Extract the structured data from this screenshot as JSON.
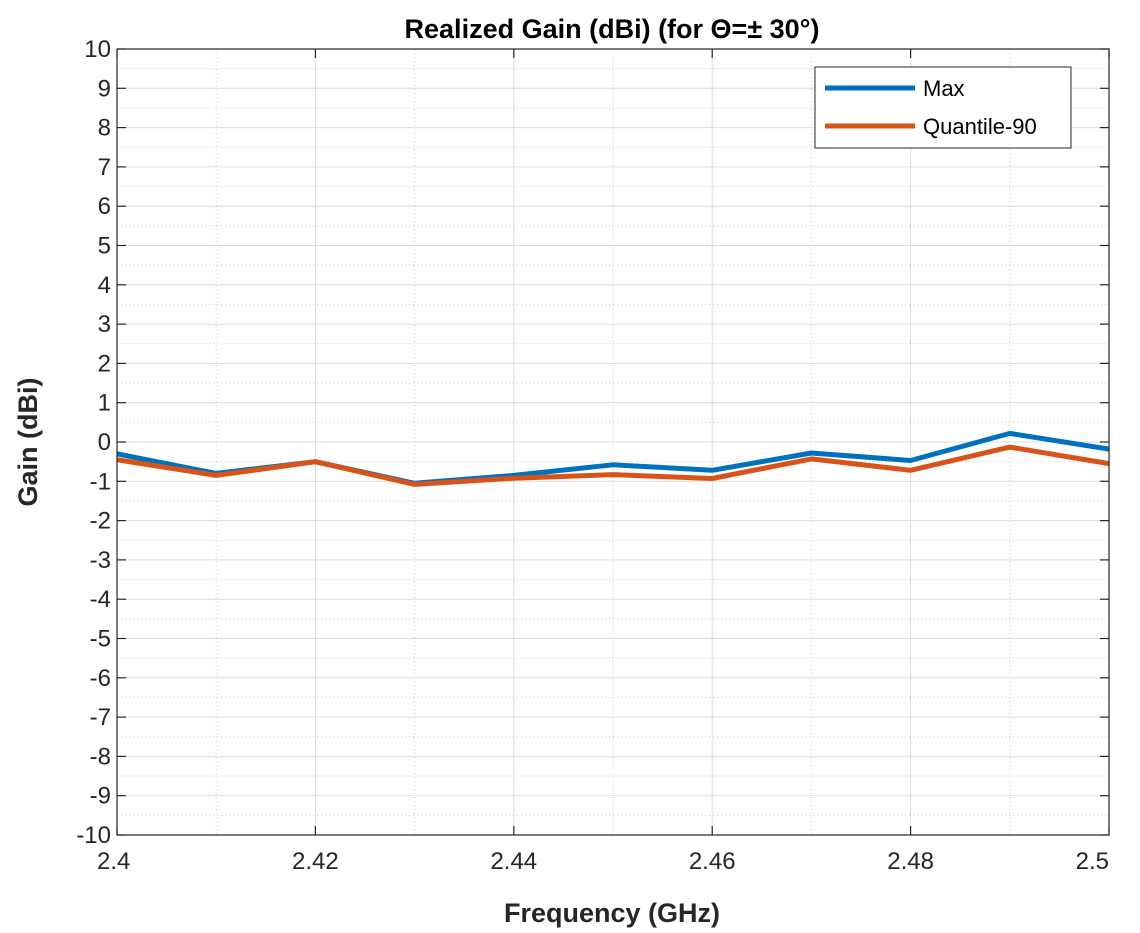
{
  "colors": {
    "max": "#0072BD",
    "quantile": "#D95319",
    "axis": "#262626",
    "grid_major": "#dcdcdc",
    "grid_minor": "#c8c8c8"
  },
  "chart_data": {
    "type": "line",
    "title": "Realized Gain (dBi) (for Θ=± 30°)",
    "xlabel": "Frequency (GHz)",
    "ylabel": "Gain (dBi)",
    "xlim": [
      2.4,
      2.5
    ],
    "ylim": [
      -10,
      10
    ],
    "x": [
      2.4,
      2.41,
      2.42,
      2.43,
      2.44,
      2.45,
      2.46,
      2.47,
      2.48,
      2.49,
      2.5
    ],
    "xticks": [
      2.4,
      2.42,
      2.44,
      2.46,
      2.48,
      2.5
    ],
    "xtick_labels": [
      "2.4",
      "2.42",
      "2.44",
      "2.46",
      "2.48",
      "2.5"
    ],
    "yticks": [
      10,
      9,
      8,
      7,
      6,
      5,
      4,
      3,
      2,
      1,
      0,
      -1,
      -2,
      -3,
      -4,
      -5,
      -6,
      -7,
      -8,
      -9,
      -10
    ],
    "ytick_labels": [
      "10",
      "9",
      "8",
      "7",
      "6",
      "5",
      "4",
      "3",
      "2",
      "1",
      "0",
      "-1",
      "-2",
      "-3",
      "-4",
      "-5",
      "-6",
      "-7",
      "-8",
      "-9",
      "-10"
    ],
    "grid": true,
    "minor_grid": true,
    "legend_position": "top-right",
    "series": [
      {
        "name": "Max",
        "color": "#0072BD",
        "values": [
          -0.3,
          -0.8,
          -0.5,
          -1.05,
          -0.85,
          -0.58,
          -0.72,
          -0.28,
          -0.47,
          0.22,
          -0.18
        ]
      },
      {
        "name": "Quantile-90",
        "color": "#D95319",
        "values": [
          -0.45,
          -0.85,
          -0.5,
          -1.08,
          -0.92,
          -0.83,
          -0.93,
          -0.43,
          -0.72,
          -0.13,
          -0.55
        ]
      }
    ]
  }
}
